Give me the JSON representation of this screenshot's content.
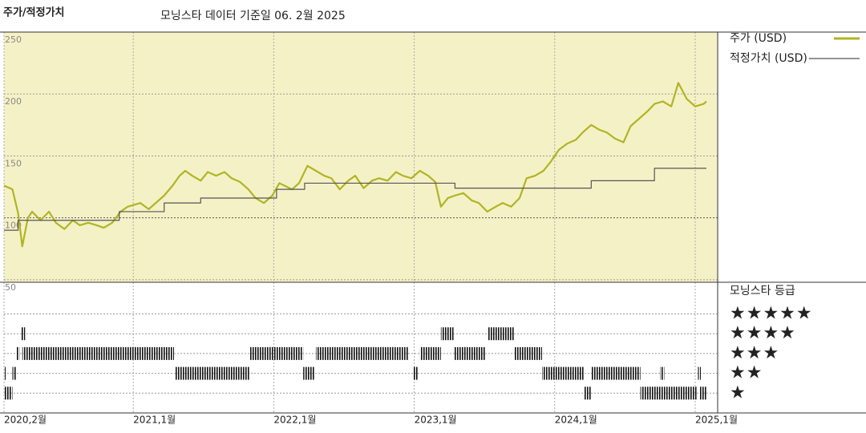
{
  "header": {
    "left_title": "주가/적정가치",
    "title": "모닝스타 데이터 기준일 06. 2월 2025"
  },
  "chart_data": [
    {
      "type": "line",
      "xlim": [
        2020.08,
        2025.16
      ],
      "ylim": [
        48,
        250
      ],
      "xticks": [
        {
          "value": 2020.08,
          "label": "2020,2월"
        },
        {
          "value": 2021.0,
          "label": "2021,1월"
        },
        {
          "value": 2022.0,
          "label": "2022,1월"
        },
        {
          "value": 2023.0,
          "label": "2023,1월"
        },
        {
          "value": 2024.0,
          "label": "2024,1월"
        },
        {
          "value": 2025.0,
          "label": "2025,1월"
        }
      ],
      "yticks": [
        50,
        100,
        150,
        200,
        250
      ],
      "grid": true,
      "series": [
        {
          "name": "주가 (USD)",
          "color": "#b0b424",
          "x": [
            2020.08,
            2020.14,
            2020.18,
            2020.21,
            2020.25,
            2020.28,
            2020.34,
            2020.4,
            2020.45,
            2020.51,
            2020.57,
            2020.62,
            2020.68,
            2020.74,
            2020.79,
            2020.85,
            2020.91,
            2020.96,
            2021.05,
            2021.11,
            2021.16,
            2021.22,
            2021.28,
            2021.33,
            2021.37,
            2021.42,
            2021.48,
            2021.53,
            2021.59,
            2021.65,
            2021.7,
            2021.76,
            2021.82,
            2021.87,
            2021.93,
            2021.99,
            2022.04,
            2022.13,
            2022.18,
            2022.24,
            2022.3,
            2022.36,
            2022.41,
            2022.47,
            2022.53,
            2022.58,
            2022.64,
            2022.7,
            2022.75,
            2022.81,
            2022.87,
            2022.92,
            2022.98,
            2023.04,
            2023.1,
            2023.15,
            2023.19,
            2023.24,
            2023.29,
            2023.35,
            2023.41,
            2023.46,
            2023.52,
            2023.58,
            2023.63,
            2023.69,
            2023.75,
            2023.8,
            2023.86,
            2023.92,
            2023.97,
            2024.03,
            2024.09,
            2024.15,
            2024.2,
            2024.26,
            2024.32,
            2024.37,
            2024.43,
            2024.49,
            2024.54,
            2024.6,
            2024.66,
            2024.71,
            2024.77,
            2024.83,
            2024.88,
            2024.94,
            2025.0,
            2025.06,
            2025.08
          ],
          "values": [
            126,
            123,
            104,
            77,
            100,
            105,
            98,
            105,
            96,
            91,
            98,
            94,
            96,
            94,
            92,
            96,
            105,
            109,
            112,
            107,
            112,
            118,
            126,
            134,
            138,
            134,
            130,
            137,
            134,
            137,
            132,
            129,
            123,
            116,
            112,
            118,
            128,
            123,
            128,
            142,
            138,
            134,
            132,
            123,
            130,
            134,
            124,
            130,
            132,
            130,
            137,
            134,
            132,
            138,
            134,
            129,
            109,
            116,
            118,
            120,
            114,
            112,
            105,
            109,
            112,
            109,
            116,
            132,
            134,
            138,
            145,
            155,
            160,
            163,
            169,
            175,
            171,
            169,
            164,
            161,
            174,
            180,
            186,
            192,
            194,
            190,
            209,
            196,
            190,
            192,
            194
          ]
        },
        {
          "name": "적정가치 (USD)",
          "color": "#555555",
          "drawstyle": "steps-post",
          "x": [
            2020.08,
            2020.18,
            2020.9,
            2021.22,
            2021.48,
            2022.02,
            2022.22,
            2023.29,
            2024.26,
            2024.71,
            2025.08
          ],
          "values": [
            90,
            98,
            105,
            112,
            116,
            123,
            128,
            124,
            130,
            140,
            140
          ]
        }
      ]
    },
    {
      "type": "rating",
      "title": "모닝스타 등급",
      "color": "#111111",
      "ylim": [
        0,
        6.6
      ],
      "yticks": [
        {
          "value": 5,
          "label": "★★★★★"
        },
        {
          "value": 4,
          "label": "★★★★"
        },
        {
          "value": 3,
          "label": "★★★"
        },
        {
          "value": 2,
          "label": "★★"
        },
        {
          "value": 1,
          "label": "★"
        }
      ],
      "periods": [
        {
          "start": 2020.08,
          "end": 2020.14,
          "stars": 1
        },
        {
          "start": 2024.21,
          "end": 2024.26,
          "stars": 1
        },
        {
          "start": 2024.61,
          "end": 2025.01,
          "stars": 1
        },
        {
          "start": 2025.03,
          "end": 2025.08,
          "stars": 1
        },
        {
          "start": 2020.08,
          "end": 2020.09,
          "stars": 2
        },
        {
          "start": 2020.14,
          "end": 2020.17,
          "stars": 2
        },
        {
          "start": 2021.3,
          "end": 2021.83,
          "stars": 2
        },
        {
          "start": 2022.21,
          "end": 2022.29,
          "stars": 2
        },
        {
          "start": 2022.99,
          "end": 2023.03,
          "stars": 2
        },
        {
          "start": 2023.91,
          "end": 2024.21,
          "stars": 2
        },
        {
          "start": 2024.26,
          "end": 2024.61,
          "stars": 2
        },
        {
          "start": 2024.75,
          "end": 2024.78,
          "stars": 2
        },
        {
          "start": 2025.02,
          "end": 2025.04,
          "stars": 2
        },
        {
          "start": 2020.17,
          "end": 2020.19,
          "stars": 3
        },
        {
          "start": 2020.21,
          "end": 2021.29,
          "stars": 3
        },
        {
          "start": 2021.83,
          "end": 2022.21,
          "stars": 3
        },
        {
          "start": 2022.3,
          "end": 2022.96,
          "stars": 3
        },
        {
          "start": 2023.04,
          "end": 2023.19,
          "stars": 3
        },
        {
          "start": 2023.28,
          "end": 2023.51,
          "stars": 3
        },
        {
          "start": 2023.71,
          "end": 2023.91,
          "stars": 3
        },
        {
          "start": 2020.2,
          "end": 2020.23,
          "stars": 4
        },
        {
          "start": 2023.19,
          "end": 2023.28,
          "stars": 4
        },
        {
          "start": 2023.52,
          "end": 2023.71,
          "stars": 4
        }
      ]
    }
  ]
}
